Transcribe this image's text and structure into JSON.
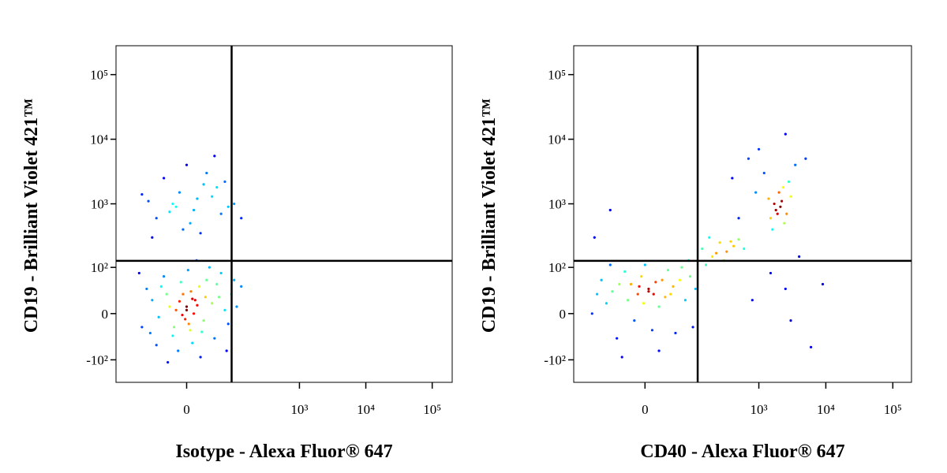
{
  "chart_data": [
    {
      "type": "scatter",
      "colormap": "jet",
      "x_label": "Isotype - Alexa Fluor® 647",
      "y_label": "CD19 - Brilliant Violet 421™",
      "xlim": [
        -230,
        200000
      ],
      "ylim": [
        -230,
        280000
      ],
      "xticks": [
        0,
        {
          "value": 1000,
          "label": "10³"
        },
        {
          "value": 10000,
          "label": "10⁴"
        },
        {
          "value": 100000,
          "label": "10⁵"
        }
      ],
      "yticks": [
        {
          "value": -100,
          "label": "-10²"
        },
        0,
        {
          "value": 100,
          "label": "10²"
        },
        {
          "value": 1000,
          "label": "10³"
        },
        {
          "value": 10000,
          "label": "10⁴"
        },
        {
          "value": 100000,
          "label": "10⁵"
        }
      ],
      "gate_x": 91,
      "gate_y": 128,
      "x": [
        0,
        12,
        -15,
        25,
        -30,
        5,
        40,
        -45,
        18,
        -8,
        30,
        -20,
        55,
        -60,
        8,
        -35,
        45,
        70,
        -75,
        2,
        -12,
        60,
        -50,
        90,
        35,
        -90,
        20,
        100,
        -5,
        10,
        -2,
        15,
        -10,
        6,
        -25,
        28,
        3,
        -18,
        22,
        -40,
        50,
        -65,
        80,
        110,
        -100,
        14,
        -28,
        75,
        130,
        0,
        8,
        -6,
        -20,
        10,
        40,
        -50,
        25,
        -10,
        60,
        -70,
        5,
        30,
        -35,
        80,
        -5,
        15,
        -25,
        50,
        100,
        -90,
        0,
        20,
        -60,
        130,
        45,
        -15,
        70
      ],
      "y": [
        10,
        20,
        5,
        -10,
        30,
        -25,
        15,
        -5,
        45,
        55,
        60,
        -35,
        25,
        20,
        -50,
        70,
        -40,
        5,
        40,
        90,
        -70,
        80,
        -55,
        30,
        100,
        -20,
        -90,
        60,
        30,
        0,
        -8,
        12,
        18,
        35,
        10,
        25,
        -15,
        -20,
        -28,
        45,
        50,
        -30,
        -15,
        10,
        80,
        130,
        -110,
        -70,
        45,
        5,
        22,
        -2,
        1000,
        800,
        1300,
        600,
        2000,
        1500,
        700,
        1100,
        500,
        3000,
        2500,
        900,
        400,
        1200,
        750,
        1800,
        1000,
        1400,
        4000,
        350,
        300,
        600,
        5500,
        900,
        2200
      ]
    },
    {
      "type": "scatter",
      "colormap": "jet",
      "x_label": "CD40 - Alexa Fluor® 647",
      "y_label": "CD19 - Brilliant Violet 421™",
      "xlim": [
        -230,
        190000
      ],
      "ylim": [
        -230,
        280000
      ],
      "xticks": [
        0,
        {
          "value": 1000,
          "label": "10³"
        },
        {
          "value": 10000,
          "label": "10⁴"
        },
        {
          "value": 100000,
          "label": "10⁵"
        }
      ],
      "yticks": [
        {
          "value": -100,
          "label": "-10²"
        },
        0,
        {
          "value": 100,
          "label": "10²"
        },
        {
          "value": 1000,
          "label": "10³"
        },
        {
          "value": 10000,
          "label": "10⁴"
        },
        {
          "value": 100000,
          "label": "10⁵"
        }
      ],
      "gate_x": 119,
      "gate_y": 128,
      "x": [
        -10,
        5,
        -25,
        15,
        -40,
        30,
        -5,
        20,
        -55,
        45,
        -15,
        10,
        60,
        -70,
        35,
        -30,
        75,
        -85,
        0,
        50,
        -45,
        90,
        -100,
        20,
        110,
        -60,
        5,
        -8,
        12,
        -20,
        25,
        -2,
        40,
        65,
        -120,
        100,
        -35,
        85,
        140,
        200,
        260,
        330,
        420,
        180,
        300,
        500,
        230,
        380,
        160,
        600,
        1800,
        2200,
        1500,
        2600,
        2000,
        1700,
        2400,
        1900,
        3000,
        1600,
        2100,
        2800,
        2300,
        1400,
        900,
        700,
        1200,
        3500,
        500,
        4000,
        1500,
        2500,
        6000,
        800,
        3000,
        400,
        1000,
        2500,
        -60,
        -110,
        9000,
        5000
      ],
      "y": [
        30,
        40,
        20,
        55,
        50,
        25,
        70,
        10,
        35,
        45,
        -10,
        -25,
        60,
        15,
        90,
        85,
        20,
        60,
        110,
        -30,
        -40,
        70,
        30,
        -70,
        40,
        110,
        35,
        45,
        30,
        50,
        60,
        15,
        30,
        100,
        0,
        -20,
        -90,
        130,
        200,
        150,
        250,
        180,
        220,
        300,
        130,
        280,
        170,
        260,
        110,
        200,
        800,
        1100,
        600,
        700,
        1500,
        1000,
        500,
        700,
        1300,
        400,
        900,
        2200,
        1800,
        1200,
        1500,
        5000,
        3000,
        4000,
        600,
        150,
        80,
        40,
        -60,
        20,
        -10,
        2500,
        7000,
        12000,
        800,
        300,
        50,
        5000
      ]
    }
  ]
}
